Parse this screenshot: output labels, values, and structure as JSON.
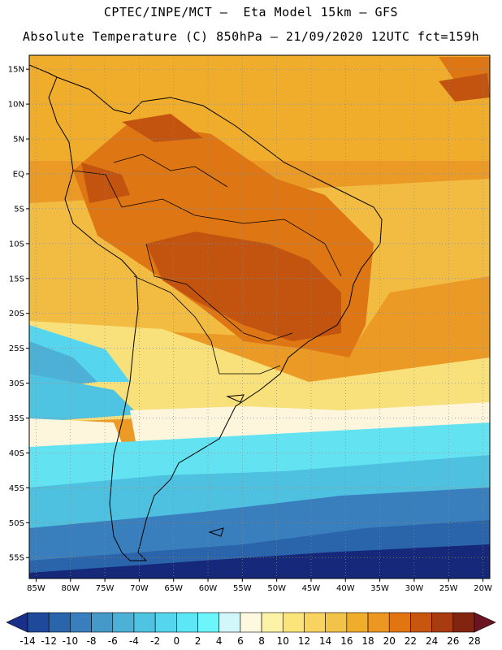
{
  "header": {
    "line1": "CPTEC/INPE/MCT –  Eta Model 15km – GFS",
    "line2": "Absolute Temperature (C) 850hPa – 21/09/2020 12UTC fct=159h"
  },
  "map": {
    "lat_labels": [
      "15N",
      "10N",
      "5N",
      "EQ",
      "5S",
      "10S",
      "15S",
      "20S",
      "25S",
      "30S",
      "35S",
      "40S",
      "45S",
      "50S",
      "55S"
    ],
    "lon_labels": [
      "85W",
      "80W",
      "75W",
      "70W",
      "65W",
      "60W",
      "55W",
      "50W",
      "45W",
      "40W",
      "35W",
      "30W",
      "25W",
      "20W"
    ],
    "lat_values": [
      15,
      10,
      5,
      0,
      -5,
      -10,
      -15,
      -20,
      -25,
      -30,
      -35,
      -40,
      -45,
      -50,
      -55
    ],
    "lon_values": [
      -85,
      -80,
      -75,
      -70,
      -65,
      -60,
      -55,
      -50,
      -45,
      -40,
      -35,
      -30,
      -25,
      -20
    ],
    "extent": {
      "lon_min": -86,
      "lon_max": -19,
      "lat_min": -58,
      "lat_max": 17
    }
  },
  "colorbar": {
    "levels": [
      "-14",
      "-12",
      "-10",
      "-8",
      "-6",
      "-4",
      "-2",
      "0",
      "2",
      "4",
      "6",
      "8",
      "10",
      "12",
      "14",
      "16",
      "18",
      "20",
      "22",
      "24",
      "26",
      "28"
    ],
    "colors": [
      "#1a2f8a",
      "#1f4a9b",
      "#2a64ab",
      "#3a7fbd",
      "#4599c8",
      "#4db0d6",
      "#4fc3e2",
      "#55d5ee",
      "#5de6f5",
      "#6cf5fa",
      "#d2f7fb",
      "#fdf8e0",
      "#fdf3a6",
      "#fbe479",
      "#f8d35f",
      "#f3c248",
      "#f0ad2c",
      "#ec9722",
      "#e27412",
      "#c9560f",
      "#a83c10",
      "#822510",
      "#6a1520"
    ]
  },
  "colors": {
    "cold_deep": "#16287a",
    "cold": "#2f6fb6",
    "cool": "#4ec1e0",
    "cyan": "#63e2f1",
    "pale": "#fdf6dc",
    "yellow": "#f8e07a",
    "gold": "#f2bc43",
    "orange": "#ec9a26",
    "dark_orange": "#de7614",
    "hot": "#c25410"
  }
}
